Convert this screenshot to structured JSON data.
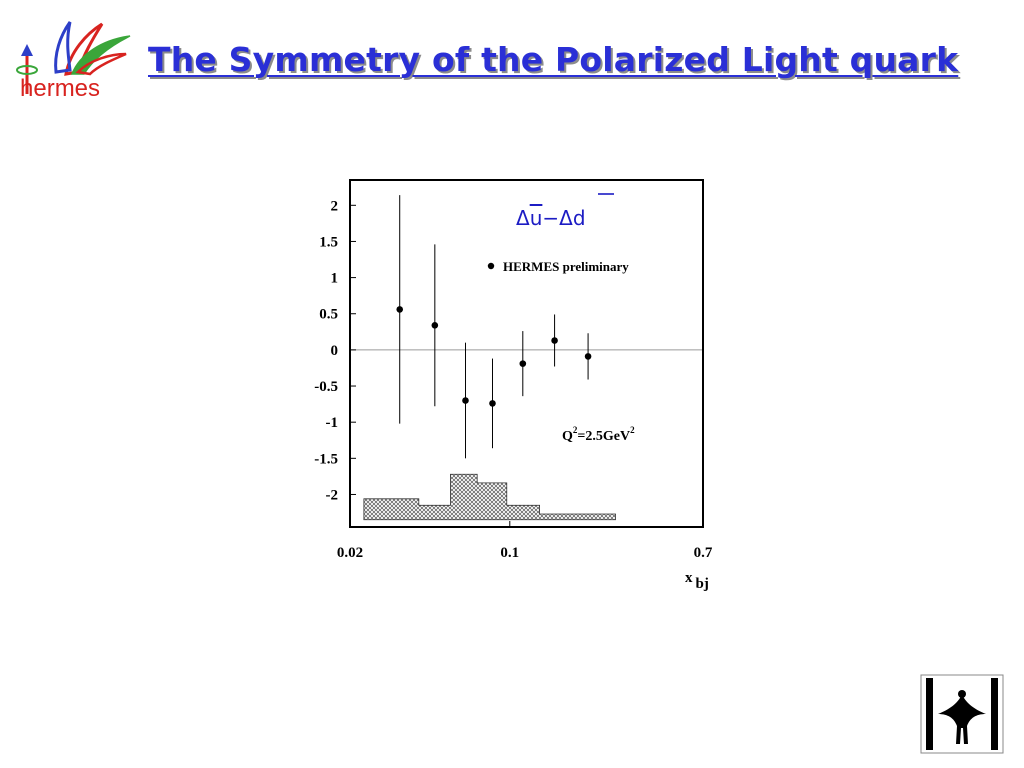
{
  "page": {
    "title": "The Symmetry of the Polarized Light quark"
  },
  "logo": {
    "text": "hermes"
  },
  "colors": {
    "title": "#2a2fd6",
    "logo_red": "#d8231f",
    "logo_green": "#3aa63a",
    "logo_blue": "#2d3fc8"
  },
  "chart_data": {
    "type": "scatter",
    "title": "",
    "formula": {
      "left": "Δ",
      "u": "u",
      "dash": "−",
      "right": "Δ",
      "d": "d"
    },
    "legend": {
      "label": "HERMES preliminary",
      "placement": "top-right"
    },
    "annotation": {
      "base": "Q",
      "sup1": "2",
      "mid": "=2.5GeV",
      "sup2": "2"
    },
    "xlabel": {
      "base": "x",
      "sub": "bj"
    },
    "xscale": "log",
    "xlim": [
      0.02,
      0.7
    ],
    "ylim": [
      -2.45,
      2.35
    ],
    "xticks": [
      {
        "value": 0.02,
        "label": "0.02"
      },
      {
        "value": 0.1,
        "label": "0.1"
      },
      {
        "value": 0.7,
        "label": "0.7"
      }
    ],
    "yticks": [
      {
        "value": 2,
        "label": "2"
      },
      {
        "value": 1.5,
        "label": "1.5"
      },
      {
        "value": 1,
        "label": "1"
      },
      {
        "value": 0.5,
        "label": "0.5"
      },
      {
        "value": 0,
        "label": "0"
      },
      {
        "value": -0.5,
        "label": "-0.5"
      },
      {
        "value": -1,
        "label": "-1"
      },
      {
        "value": -1.5,
        "label": "-1.5"
      },
      {
        "value": -2,
        "label": "-2"
      }
    ],
    "zero_line": true,
    "series": [
      {
        "name": "HERMES preliminary",
        "points": [
          {
            "x": 0.033,
            "y": 0.56,
            "err": 1.58
          },
          {
            "x": 0.047,
            "y": 0.34,
            "err": 1.12
          },
          {
            "x": 0.064,
            "y": -0.7,
            "err": 0.8
          },
          {
            "x": 0.084,
            "y": -0.74,
            "err": 0.62
          },
          {
            "x": 0.114,
            "y": -0.19,
            "err": 0.45
          },
          {
            "x": 0.157,
            "y": 0.13,
            "err": 0.36
          },
          {
            "x": 0.22,
            "y": -0.09,
            "err": 0.32
          }
        ]
      }
    ],
    "systematic_band": {
      "baseline": -2.35,
      "bins": [
        {
          "x0": 0.023,
          "x1": 0.04,
          "top": -2.06
        },
        {
          "x0": 0.04,
          "x1": 0.055,
          "top": -2.15
        },
        {
          "x0": 0.055,
          "x1": 0.072,
          "top": -1.72
        },
        {
          "x0": 0.072,
          "x1": 0.097,
          "top": -1.84
        },
        {
          "x0": 0.097,
          "x1": 0.135,
          "top": -2.15
        },
        {
          "x0": 0.135,
          "x1": 0.29,
          "top": -2.27
        }
      ]
    }
  }
}
